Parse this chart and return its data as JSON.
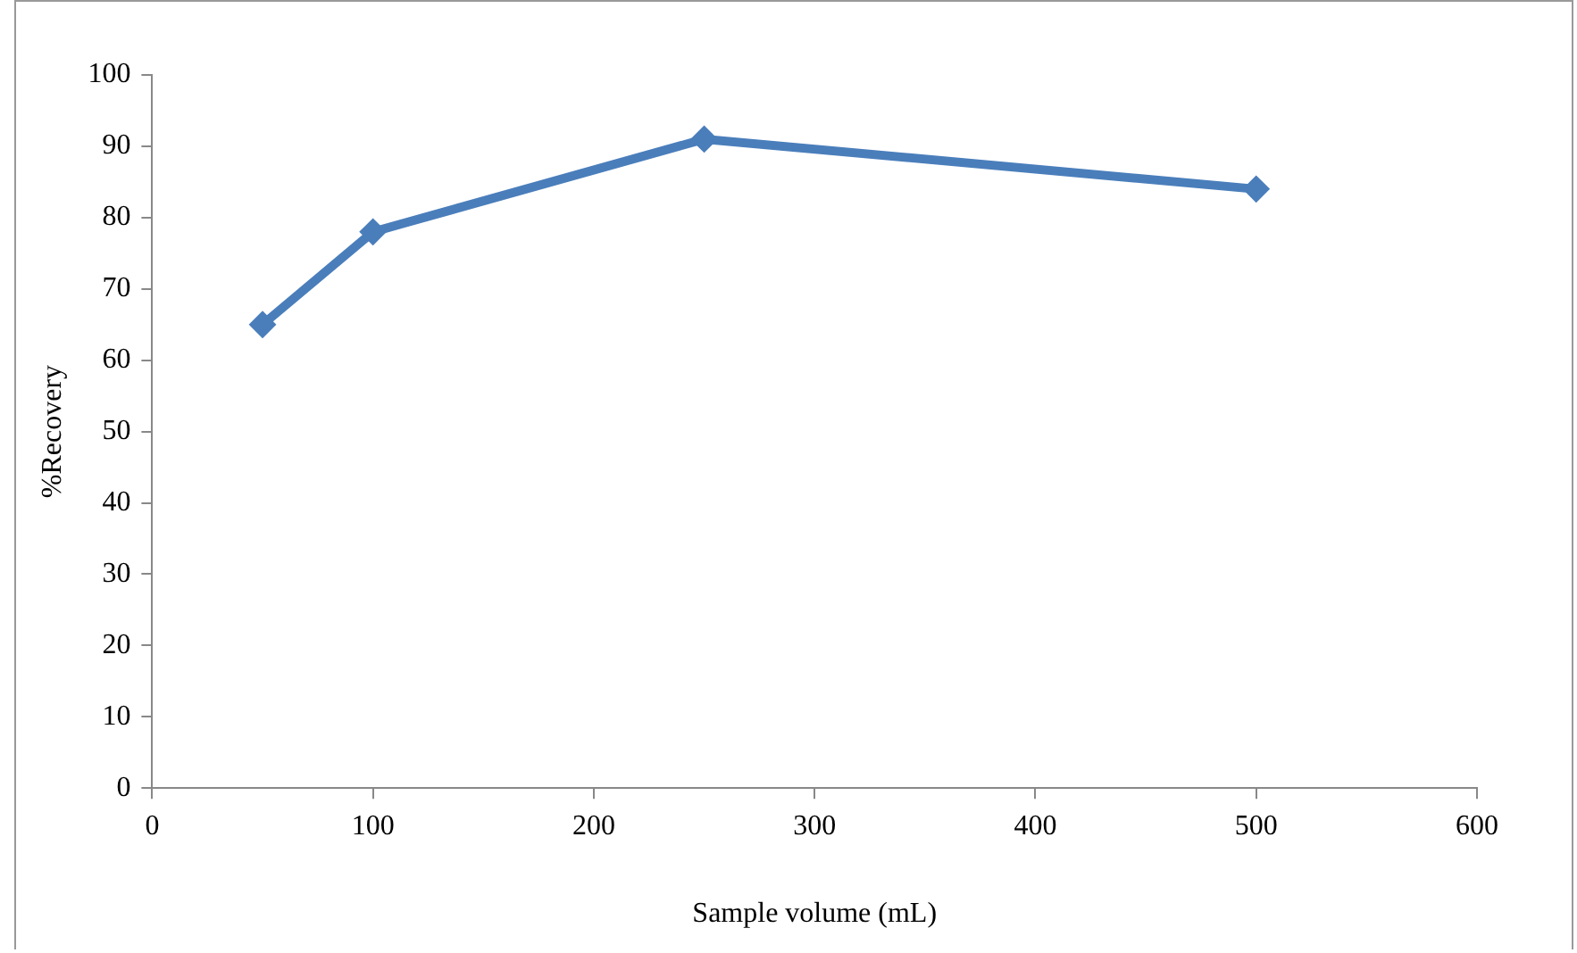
{
  "chart_data": {
    "type": "line",
    "xlabel": "Sample volume (mL)",
    "ylabel": "%Recovery",
    "x": [
      50,
      100,
      250,
      500
    ],
    "series": [
      {
        "color": "#4a7ebb",
        "values": [
          65,
          78,
          91,
          84
        ]
      }
    ],
    "xlim": [
      0,
      600
    ],
    "xticks": [
      0,
      100,
      200,
      300,
      400,
      500,
      600
    ],
    "ylim": [
      0,
      100
    ],
    "yticks": [
      0,
      10,
      20,
      30,
      40,
      50,
      60,
      70,
      80,
      90,
      100
    ],
    "grid": false,
    "legend": false,
    "marker": "diamond",
    "line_style": "solid"
  }
}
